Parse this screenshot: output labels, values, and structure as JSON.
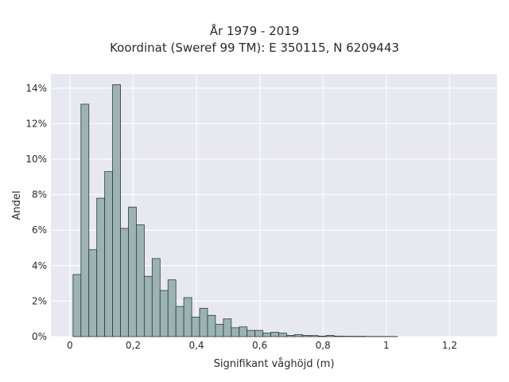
{
  "chart_data": {
    "type": "bar",
    "title_line1": "År 1979 - 2019",
    "title_line2": "Koordinat (Sweref 99 TM): E 350115, N 6209443",
    "xlabel": "Signifikant våghöjd (m)",
    "ylabel": "Andel",
    "xlim": [
      -0.06,
      1.35
    ],
    "ylim": [
      0,
      0.148
    ],
    "x_ticks": [
      0,
      0.2,
      0.4,
      0.6,
      0.8,
      1.0,
      1.2
    ],
    "x_tick_labels": [
      "0",
      "0,2",
      "0,4",
      "0,6",
      "0,8",
      "1",
      "1,2"
    ],
    "y_ticks": [
      0,
      0.02,
      0.04,
      0.06,
      0.08,
      0.1,
      0.12,
      0.14
    ],
    "y_tick_labels": [
      "0%",
      "2%",
      "4%",
      "6%",
      "8%",
      "10%",
      "12%",
      "14%"
    ],
    "grid": true,
    "bin_width": 0.025,
    "bin_start": 0.01,
    "values": [
      0.035,
      0.131,
      0.049,
      0.078,
      0.093,
      0.142,
      0.061,
      0.073,
      0.063,
      0.034,
      0.044,
      0.026,
      0.032,
      0.017,
      0.022,
      0.011,
      0.016,
      0.012,
      0.007,
      0.01,
      0.005,
      0.0055,
      0.0035,
      0.0035,
      0.002,
      0.0025,
      0.002,
      0.0007,
      0.0012,
      0.0007,
      0.0006,
      0.0003,
      0.0007,
      0.0003,
      0.0002,
      0.0002,
      0.0002,
      0.0001,
      0.0001,
      0.0001,
      0.0001
    ],
    "bar_color": "#9bb3b3",
    "bar_edge": "#2e3b3b",
    "plot_bg": "#e8e8f0",
    "grid_color": "#ffffff"
  }
}
